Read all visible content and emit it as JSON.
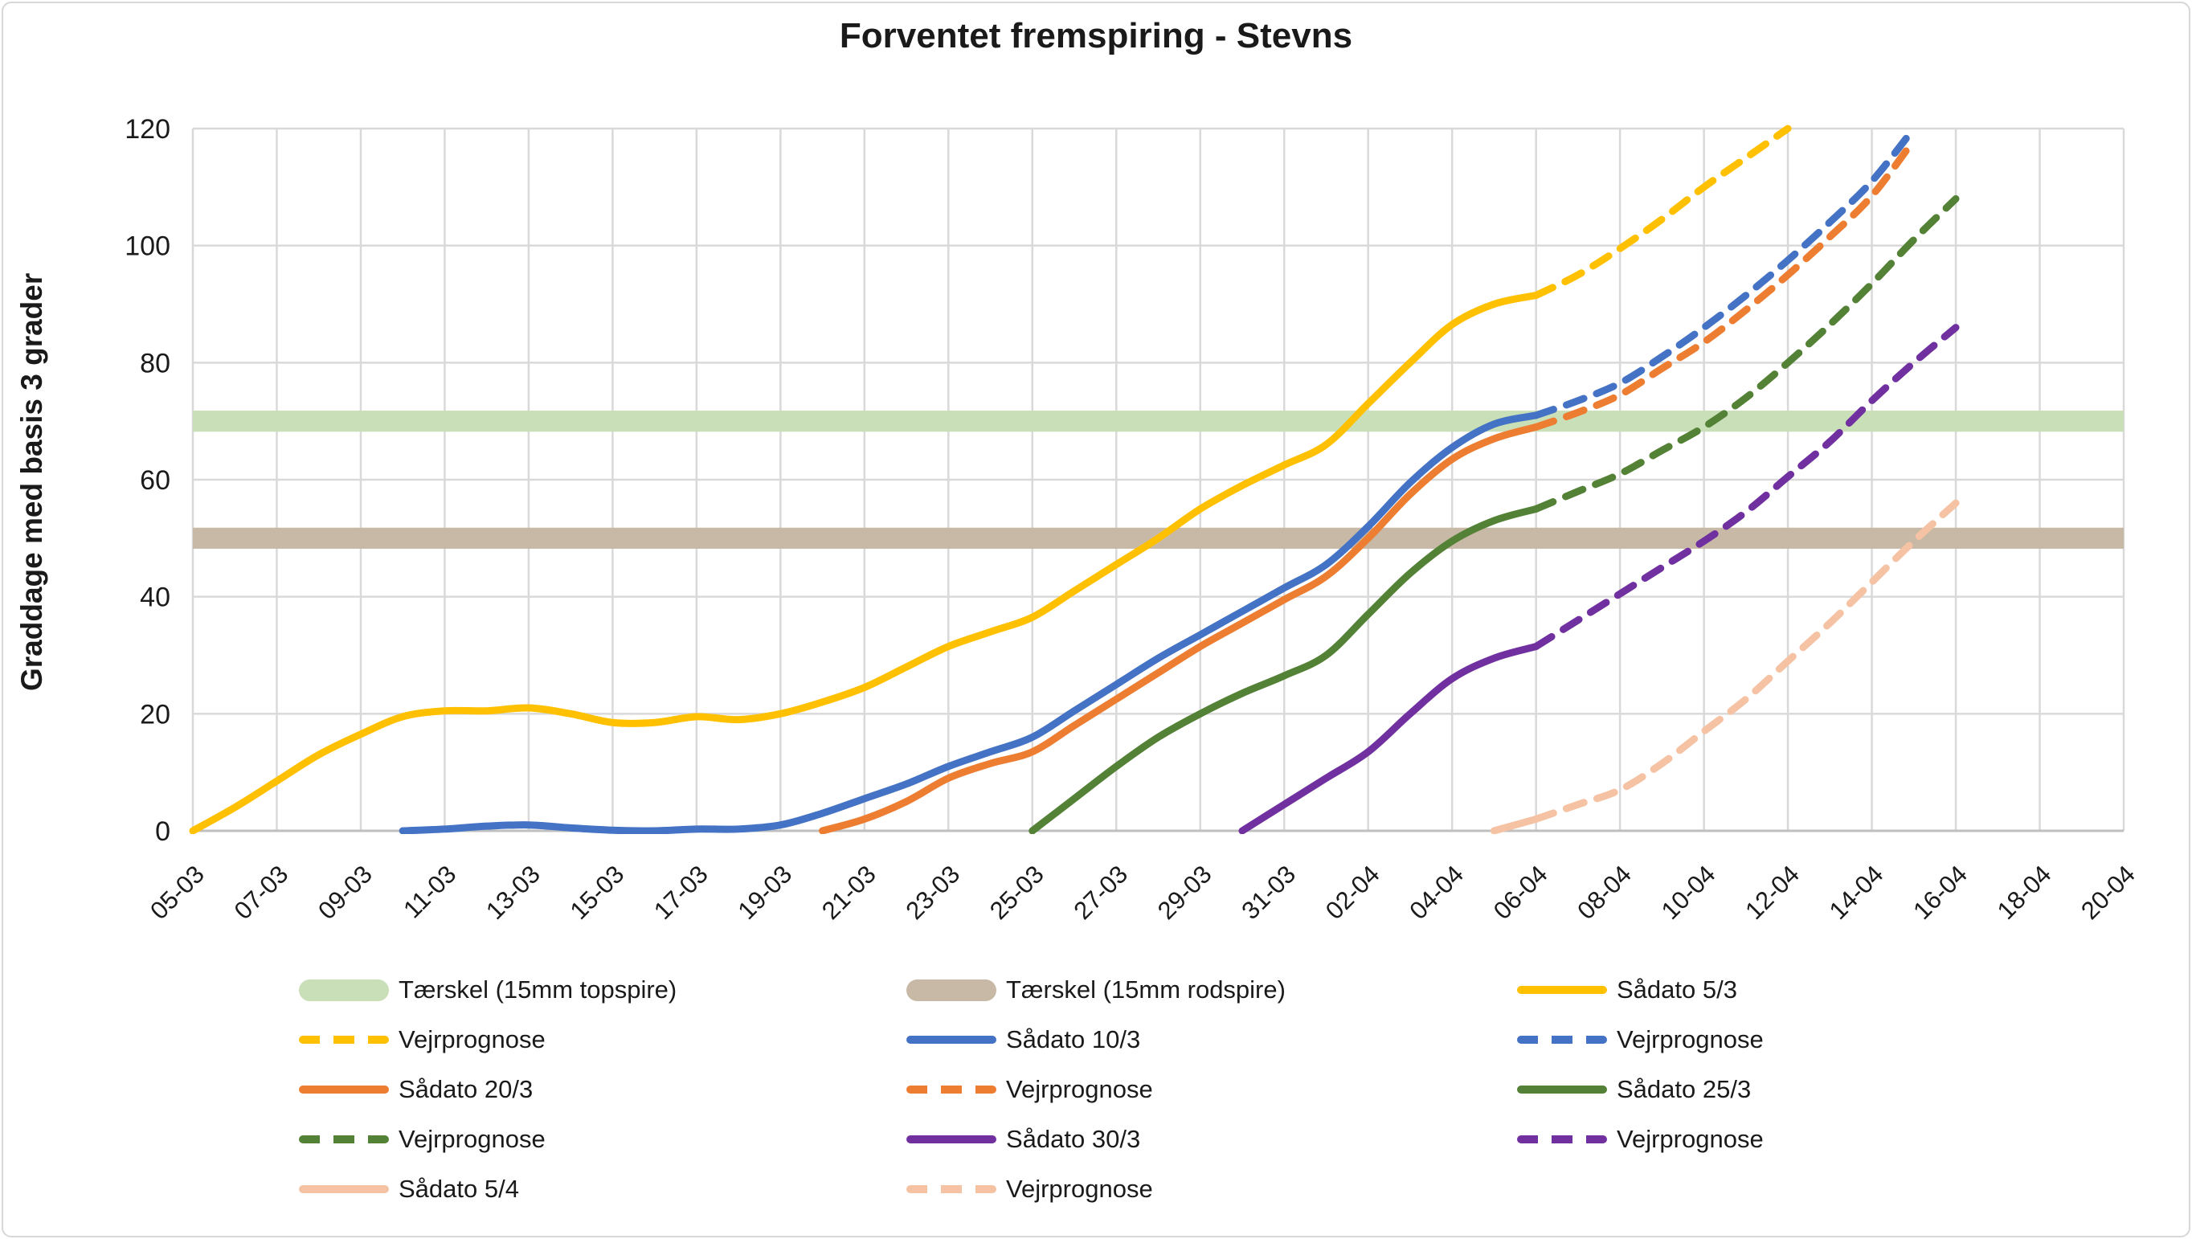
{
  "title": "Forventet fremspiring - Stevns",
  "colors": {
    "gridline": "#d9d9d9",
    "axis_line": "#bfbfbf",
    "text": "#1a1a1a",
    "band_topspire": "#c9dfb8",
    "band_rodspire": "#c8b9a7",
    "yellow": "#FFC000",
    "blue": "#4472C4",
    "orange": "#ED7D31",
    "green": "#538135",
    "purple": "#7030A0",
    "pink": "#F5C3A4"
  },
  "chart_data": {
    "type": "line",
    "title": "Forventet fremspiring - Stevns",
    "xlabel": "",
    "ylabel": "Graddage med basis 3 grader",
    "ylim": [
      0,
      120
    ],
    "y_ticks": [
      0,
      20,
      40,
      60,
      80,
      100,
      120
    ],
    "x_tick_labels": [
      "05-03",
      "07-03",
      "09-03",
      "11-03",
      "13-03",
      "15-03",
      "17-03",
      "19-03",
      "21-03",
      "23-03",
      "25-03",
      "27-03",
      "29-03",
      "31-03",
      "02-04",
      "04-04",
      "06-04",
      "08-04",
      "10-04",
      "12-04",
      "14-04",
      "16-04",
      "18-04",
      "20-04"
    ],
    "grid": true,
    "legend_position": "bottom",
    "bands": [
      {
        "id": "taerskel-topspire",
        "label": "Tærskel (15mm topspire)",
        "value": 70,
        "half_width": 1.8,
        "color": "#c9dfb8"
      },
      {
        "id": "taerskel-rodspire",
        "label": "Tærskel (15mm rodspire)",
        "value": 50,
        "half_width": 1.8,
        "color": "#c8b9a7"
      }
    ],
    "series": [
      {
        "id": "saadato-5-3",
        "name": "Sådato 5/3",
        "color": "#FFC000",
        "style": "solid",
        "points": [
          [
            "05-03",
            0
          ],
          [
            "06-03",
            4
          ],
          [
            "07-03",
            8.5
          ],
          [
            "08-03",
            13
          ],
          [
            "09-03",
            16.5
          ],
          [
            "10-03",
            19.5
          ],
          [
            "11-03",
            20.5
          ],
          [
            "12-03",
            20.5
          ],
          [
            "13-03",
            21
          ],
          [
            "14-03",
            20
          ],
          [
            "15-03",
            18.5
          ],
          [
            "16-03",
            18.5
          ],
          [
            "17-03",
            19.5
          ],
          [
            "18-03",
            19
          ],
          [
            "19-03",
            20
          ],
          [
            "20-03",
            22
          ],
          [
            "21-03",
            24.5
          ],
          [
            "22-03",
            28
          ],
          [
            "23-03",
            31.5
          ],
          [
            "24-03",
            34
          ],
          [
            "25-03",
            36.5
          ],
          [
            "26-03",
            41
          ],
          [
            "27-03",
            45.5
          ],
          [
            "28-03",
            50
          ],
          [
            "29-03",
            55
          ],
          [
            "30-03",
            59
          ],
          [
            "31-03",
            62.5
          ],
          [
            "01-04",
            66
          ],
          [
            "02-04",
            73
          ],
          [
            "03-04",
            80
          ],
          [
            "04-04",
            86.5
          ],
          [
            "05-04",
            90
          ],
          [
            "06-04",
            91.5
          ]
        ]
      },
      {
        "id": "vejrprognose-5-3",
        "name": "Vejrprognose",
        "color": "#FFC000",
        "style": "dashed",
        "points": [
          [
            "06-04",
            91.5
          ],
          [
            "07-04",
            95
          ],
          [
            "08-04",
            99.5
          ],
          [
            "09-04",
            104.5
          ],
          [
            "10-04",
            110
          ],
          [
            "11-04",
            115
          ],
          [
            "12-04",
            120
          ]
        ]
      },
      {
        "id": "saadato-10-3",
        "name": "Sådato 10/3",
        "color": "#4472C4",
        "style": "solid",
        "points": [
          [
            "10-03",
            0
          ],
          [
            "11-03",
            0.3
          ],
          [
            "12-03",
            0.8
          ],
          [
            "13-03",
            1
          ],
          [
            "14-03",
            0.5
          ],
          [
            "15-03",
            0.1
          ],
          [
            "16-03",
            0
          ],
          [
            "17-03",
            0.3
          ],
          [
            "18-03",
            0.3
          ],
          [
            "19-03",
            1
          ],
          [
            "20-03",
            3
          ],
          [
            "21-03",
            5.5
          ],
          [
            "22-03",
            8
          ],
          [
            "23-03",
            11
          ],
          [
            "24-03",
            13.5
          ],
          [
            "25-03",
            16
          ],
          [
            "26-03",
            20.5
          ],
          [
            "27-03",
            25
          ],
          [
            "28-03",
            29.5
          ],
          [
            "29-03",
            33.5
          ],
          [
            "30-03",
            37.5
          ],
          [
            "31-03",
            41.5
          ],
          [
            "01-04",
            45.5
          ],
          [
            "02-04",
            52
          ],
          [
            "03-04",
            59.5
          ],
          [
            "04-04",
            65.5
          ],
          [
            "05-04",
            69.5
          ],
          [
            "06-04",
            71
          ]
        ]
      },
      {
        "id": "vejrprognose-10-3",
        "name": "Vejrprognose",
        "color": "#4472C4",
        "style": "dashed",
        "points": [
          [
            "06-04",
            71
          ],
          [
            "07-04",
            73.5
          ],
          [
            "08-04",
            76.5
          ],
          [
            "09-04",
            81
          ],
          [
            "10-04",
            86
          ],
          [
            "11-04",
            91.5
          ],
          [
            "12-04",
            97.5
          ],
          [
            "13-04",
            104
          ],
          [
            "14-04",
            111
          ],
          [
            "15-04",
            120
          ]
        ]
      },
      {
        "id": "saadato-20-3",
        "name": "Sådato 20/3",
        "color": "#ED7D31",
        "style": "solid",
        "points": [
          [
            "20-03",
            0
          ],
          [
            "21-03",
            2
          ],
          [
            "22-03",
            5
          ],
          [
            "23-03",
            9
          ],
          [
            "24-03",
            11.5
          ],
          [
            "25-03",
            13.5
          ],
          [
            "26-03",
            18
          ],
          [
            "27-03",
            22.5
          ],
          [
            "28-03",
            27
          ],
          [
            "29-03",
            31.5
          ],
          [
            "30-03",
            35.5
          ],
          [
            "31-03",
            39.5
          ],
          [
            "01-04",
            43.5
          ],
          [
            "02-04",
            50
          ],
          [
            "03-04",
            57.5
          ],
          [
            "04-04",
            63.5
          ],
          [
            "05-04",
            67
          ],
          [
            "06-04",
            69
          ]
        ]
      },
      {
        "id": "vejrprognose-20-3",
        "name": "Vejrprognose",
        "color": "#ED7D31",
        "style": "dashed",
        "points": [
          [
            "06-04",
            69
          ],
          [
            "07-04",
            71.5
          ],
          [
            "08-04",
            74.5
          ],
          [
            "09-04",
            79
          ],
          [
            "10-04",
            83.5
          ],
          [
            "11-04",
            89
          ],
          [
            "12-04",
            95
          ],
          [
            "13-04",
            101.5
          ],
          [
            "14-04",
            108.5
          ],
          [
            "15-04",
            118
          ]
        ]
      },
      {
        "id": "saadato-25-3",
        "name": "Sådato 25/3",
        "color": "#538135",
        "style": "solid",
        "points": [
          [
            "25-03",
            0
          ],
          [
            "26-03",
            5.5
          ],
          [
            "27-03",
            11
          ],
          [
            "28-03",
            16
          ],
          [
            "29-03",
            20
          ],
          [
            "30-03",
            23.5
          ],
          [
            "31-03",
            26.5
          ],
          [
            "01-04",
            30
          ],
          [
            "02-04",
            37
          ],
          [
            "03-04",
            44
          ],
          [
            "04-04",
            49.5
          ],
          [
            "05-04",
            53
          ],
          [
            "06-04",
            55
          ]
        ]
      },
      {
        "id": "vejrprognose-25-3",
        "name": "Vejrprognose",
        "color": "#538135",
        "style": "dashed",
        "points": [
          [
            "06-04",
            55
          ],
          [
            "07-04",
            58
          ],
          [
            "08-04",
            61
          ],
          [
            "09-04",
            65
          ],
          [
            "10-04",
            69
          ],
          [
            "11-04",
            74
          ],
          [
            "12-04",
            80
          ],
          [
            "13-04",
            86.5
          ],
          [
            "14-04",
            93.5
          ],
          [
            "15-04",
            101
          ],
          [
            "16-04",
            108
          ]
        ]
      },
      {
        "id": "saadato-30-3",
        "name": "Sådato 30/3",
        "color": "#7030A0",
        "style": "solid",
        "points": [
          [
            "30-03",
            0
          ],
          [
            "31-03",
            4.5
          ],
          [
            "01-04",
            9
          ],
          [
            "02-04",
            13.5
          ],
          [
            "03-04",
            20
          ],
          [
            "04-04",
            26
          ],
          [
            "05-04",
            29.5
          ],
          [
            "06-04",
            31.5
          ]
        ]
      },
      {
        "id": "vejrprognose-30-3",
        "name": "Vejrprognose",
        "color": "#7030A0",
        "style": "dashed",
        "points": [
          [
            "06-04",
            31.5
          ],
          [
            "07-04",
            36
          ],
          [
            "08-04",
            40.5
          ],
          [
            "09-04",
            45
          ],
          [
            "10-04",
            49.5
          ],
          [
            "11-04",
            54.5
          ],
          [
            "12-04",
            60.5
          ],
          [
            "13-04",
            66.5
          ],
          [
            "14-04",
            73.5
          ],
          [
            "15-04",
            80
          ],
          [
            "16-04",
            86
          ]
        ]
      },
      {
        "id": "saadato-5-4",
        "name": "Sådato 5/4",
        "color": "#F5C3A4",
        "style": "solid",
        "points": [
          [
            "05-04",
            0
          ],
          [
            "06-04",
            2
          ]
        ]
      },
      {
        "id": "vejrprognose-5-4",
        "name": "Vejrprognose",
        "color": "#F5C3A4",
        "style": "dashed",
        "points": [
          [
            "06-04",
            2
          ],
          [
            "07-04",
            4.5
          ],
          [
            "08-04",
            7
          ],
          [
            "09-04",
            11.5
          ],
          [
            "10-04",
            17
          ],
          [
            "11-04",
            22.5
          ],
          [
            "12-04",
            29
          ],
          [
            "13-04",
            35.5
          ],
          [
            "14-04",
            42.5
          ],
          [
            "15-04",
            49.5
          ],
          [
            "16-04",
            56
          ]
        ]
      }
    ]
  },
  "legend": {
    "items": [
      {
        "id": "legend-taerskel-topspire",
        "label": "Tærskel (15mm topspire)",
        "swatch": "band",
        "color": "#c9dfb8",
        "row": 0,
        "col": 0
      },
      {
        "id": "legend-taerskel-rodspire",
        "label": "Tærskel (15mm rodspire)",
        "swatch": "band",
        "color": "#c8b9a7",
        "row": 0,
        "col": 1
      },
      {
        "id": "legend-saadato-5-3",
        "label": "Sådato 5/3",
        "swatch": "solid",
        "color": "#FFC000",
        "row": 0,
        "col": 2
      },
      {
        "id": "legend-vejrprognose-5-3",
        "label": "Vejrprognose",
        "swatch": "dashed",
        "color": "#FFC000",
        "row": 1,
        "col": 0
      },
      {
        "id": "legend-saadato-10-3",
        "label": "Sådato 10/3",
        "swatch": "solid",
        "color": "#4472C4",
        "row": 1,
        "col": 1
      },
      {
        "id": "legend-vejrprognose-10-3",
        "label": "Vejrprognose",
        "swatch": "dashed",
        "color": "#4472C4",
        "row": 1,
        "col": 2
      },
      {
        "id": "legend-saadato-20-3",
        "label": "Sådato 20/3",
        "swatch": "solid",
        "color": "#ED7D31",
        "row": 2,
        "col": 0
      },
      {
        "id": "legend-vejrprognose-20-3",
        "label": "Vejrprognose",
        "swatch": "dashed",
        "color": "#ED7D31",
        "row": 2,
        "col": 1
      },
      {
        "id": "legend-saadato-25-3",
        "label": "Sådato 25/3",
        "swatch": "solid",
        "color": "#538135",
        "row": 2,
        "col": 2
      },
      {
        "id": "legend-vejrprognose-25-3",
        "label": "Vejrprognose",
        "swatch": "dashed",
        "color": "#538135",
        "row": 3,
        "col": 0
      },
      {
        "id": "legend-saadato-30-3",
        "label": "Sådato 30/3",
        "swatch": "solid",
        "color": "#7030A0",
        "row": 3,
        "col": 1
      },
      {
        "id": "legend-vejrprognose-30-3",
        "label": "Vejrprognose",
        "swatch": "dashed",
        "color": "#7030A0",
        "row": 3,
        "col": 2
      },
      {
        "id": "legend-saadato-5-4",
        "label": "Sådato 5/4",
        "swatch": "solid",
        "color": "#F5C3A4",
        "row": 4,
        "col": 0
      },
      {
        "id": "legend-vejrprognose-5-4",
        "label": "Vejrprognose",
        "swatch": "dashed",
        "color": "#F5C3A4",
        "row": 4,
        "col": 1
      }
    ]
  }
}
